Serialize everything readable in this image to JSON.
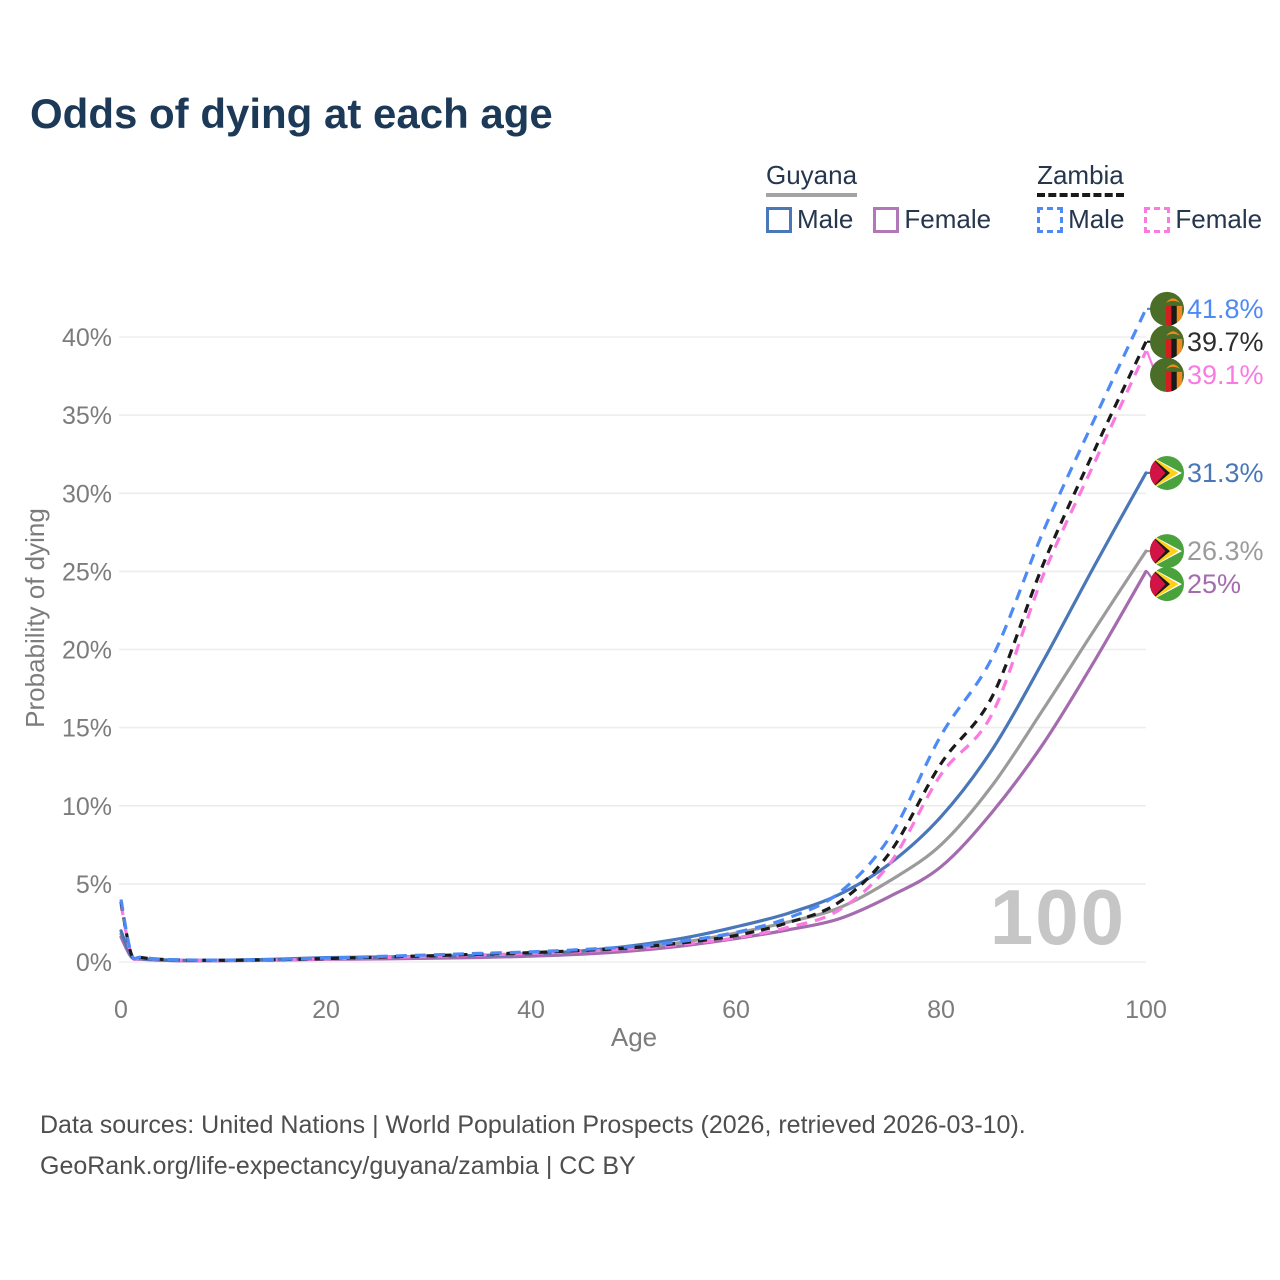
{
  "title": "Odds of dying at each age",
  "legend": {
    "groups": [
      {
        "name": "Guyana",
        "line_style": "solid",
        "line_color": "#a3a3a3",
        "items": [
          {
            "label": "Male",
            "color": "#4a77b8",
            "style": "solid"
          },
          {
            "label": "Female",
            "color": "#b277b7",
            "style": "solid"
          }
        ]
      },
      {
        "name": "Zambia",
        "line_style": "dashed",
        "line_color": "#1a1a1a",
        "items": [
          {
            "label": "Male",
            "color": "#4d8af5",
            "style": "dashed"
          },
          {
            "label": "Female",
            "color": "#fa7ae1",
            "style": "dashed"
          }
        ]
      }
    ]
  },
  "chart_data": {
    "type": "line",
    "title": "Odds of dying at each age",
    "xlabel": "Age",
    "ylabel": "Probability of dying",
    "xlim": [
      0,
      100
    ],
    "ylim_percent": [
      0,
      42
    ],
    "grid": true,
    "watermark": "100",
    "xticks": [
      0,
      20,
      40,
      60,
      80,
      100
    ],
    "xtick_labels": [
      "0",
      "20",
      "40",
      "60",
      "80",
      "100"
    ],
    "yticks_percent": [
      0,
      5,
      10,
      15,
      20,
      25,
      30,
      35,
      40
    ],
    "ytick_labels": [
      "0%",
      "5%",
      "10%",
      "15%",
      "20%",
      "25%",
      "30%",
      "35%",
      "40%"
    ],
    "ages": [
      0,
      1,
      2,
      5,
      10,
      15,
      20,
      25,
      30,
      35,
      40,
      45,
      50,
      55,
      60,
      65,
      70,
      75,
      80,
      85,
      90,
      95,
      100
    ],
    "series": [
      {
        "name": "Guyana Both sexes",
        "slug": "guyana-total",
        "country": "Guyana",
        "sex": "Both",
        "color": "#9b9b9b",
        "dash": false,
        "dash_array": "",
        "values_percent": [
          1.8,
          0.36,
          0.2,
          0.1,
          0.1,
          0.15,
          0.22,
          0.26,
          0.3,
          0.35,
          0.44,
          0.6,
          0.88,
          1.28,
          1.85,
          2.55,
          3.45,
          5.2,
          7.5,
          11.3,
          16.2,
          21.3,
          26.3
        ],
        "end_label": {
          "text": "26.3%",
          "color": "#9b9b9b",
          "flag": "guyana"
        }
      },
      {
        "name": "Guyana Female",
        "slug": "guyana-female",
        "country": "Guyana",
        "sex": "Female",
        "color": "#a46cae",
        "dash": false,
        "dash_array": "",
        "values_percent": [
          1.6,
          0.32,
          0.18,
          0.09,
          0.08,
          0.12,
          0.17,
          0.2,
          0.24,
          0.29,
          0.37,
          0.5,
          0.72,
          1.05,
          1.5,
          2.05,
          2.75,
          4.2,
          6.1,
          9.6,
          14.0,
          19.3,
          25.0
        ],
        "end_label": {
          "text": "25%",
          "color": "#a46cae",
          "flag": "guyana"
        }
      },
      {
        "name": "Guyana Male",
        "slug": "guyana-male",
        "country": "Guyana",
        "sex": "Male",
        "color": "#4a77b8",
        "dash": false,
        "dash_array": "",
        "values_percent": [
          2.0,
          0.4,
          0.22,
          0.12,
          0.12,
          0.18,
          0.28,
          0.32,
          0.36,
          0.42,
          0.52,
          0.72,
          1.05,
          1.55,
          2.25,
          3.1,
          4.3,
          6.3,
          9.3,
          13.6,
          19.3,
          25.4,
          31.3
        ],
        "end_label": {
          "text": "31.3%",
          "color": "#4a77b8",
          "flag": "guyana"
        }
      },
      {
        "name": "Zambia Female",
        "slug": "zambia-female",
        "country": "Zambia",
        "sex": "Female",
        "color": "#fa7ae1",
        "dash": true,
        "dash_array": "11 8",
        "values_percent": [
          3.7,
          0.47,
          0.26,
          0.13,
          0.1,
          0.13,
          0.2,
          0.28,
          0.36,
          0.45,
          0.55,
          0.68,
          0.85,
          1.15,
          1.55,
          2.2,
          3.3,
          6.3,
          12.0,
          15.9,
          24.8,
          32.0,
          39.1
        ],
        "end_label": {
          "text": "39.1%",
          "color": "#fa7ae1",
          "flag": "zambia"
        }
      },
      {
        "name": "Zambia Both sexes",
        "slug": "zambia-total",
        "country": "Zambia",
        "sex": "Both",
        "color": "#1a1a1a",
        "dash": true,
        "dash_array": "9 7",
        "values_percent": [
          3.85,
          0.5,
          0.28,
          0.14,
          0.11,
          0.15,
          0.22,
          0.31,
          0.4,
          0.5,
          0.6,
          0.74,
          0.92,
          1.25,
          1.7,
          2.5,
          3.8,
          7.0,
          12.7,
          17.0,
          25.5,
          32.8,
          39.7
        ],
        "end_label": {
          "text": "39.7%",
          "color": "#2d2d2d",
          "flag": "zambia"
        }
      },
      {
        "name": "Zambia Male",
        "slug": "zambia-male",
        "country": "Zambia",
        "sex": "Male",
        "color": "#4d8af5",
        "dash": true,
        "dash_array": "11 8",
        "values_percent": [
          4.0,
          0.55,
          0.3,
          0.15,
          0.12,
          0.16,
          0.25,
          0.35,
          0.45,
          0.55,
          0.65,
          0.8,
          1.0,
          1.35,
          1.9,
          2.8,
          4.4,
          8.0,
          14.5,
          19.5,
          27.6,
          34.8,
          41.8
        ],
        "end_label": {
          "text": "41.8%",
          "color": "#4d8af5",
          "flag": "zambia"
        }
      }
    ],
    "flag_colors": {
      "zambia": {
        "green": "#4a6d28",
        "red": "#d21f1f",
        "black": "#1a1a1a",
        "orange": "#ef8a1e"
      },
      "guyana": {
        "green": "#4aa23c",
        "white": "#ffffff",
        "yellow": "#fcd116",
        "black": "#1a1a1a",
        "red": "#d31245"
      }
    }
  },
  "footer": {
    "line1": "Data sources: United Nations | World Population Prospects (2026, retrieved 2026-03-10).",
    "line2": "GeoRank.org/life-expectancy/guyana/zambia | CC BY"
  }
}
